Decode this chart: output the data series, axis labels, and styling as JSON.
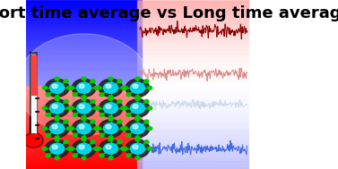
{
  "title": "Short time average vs Long time average",
  "title_fontsize": 13,
  "title_fontweight": "bold",
  "bg_left_top": "#cc0000",
  "bg_left_bottom": "#0000cc",
  "bg_right_color": "#ffffff",
  "waveform_colors": [
    "#8b0000",
    "#cd5c5c",
    "#b0c4de",
    "#4169e1"
  ],
  "waveform_alphas": [
    1.0,
    0.7,
    0.6,
    1.0
  ],
  "waveform_amplitudes": [
    0.7,
    0.5,
    0.4,
    0.6
  ],
  "waveform_offsets": [
    0.82,
    0.56,
    0.38,
    0.12
  ],
  "waveform_frequencies": [
    18,
    14,
    12,
    16
  ],
  "n_points": 600,
  "seed": 42
}
